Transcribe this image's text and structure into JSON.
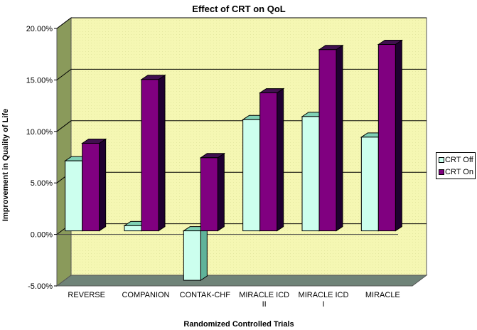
{
  "chart_data": {
    "type": "bar",
    "title": "Effect of CRT on QoL",
    "xlabel": "Randomized Controlled Trials",
    "ylabel": "Improvement in Quality of Life",
    "ylim": [
      -0.05,
      0.2
    ],
    "yticks": [
      -0.05,
      0,
      0.05,
      0.1,
      0.15,
      0.2
    ],
    "ytick_labels": [
      "-5.00%",
      "0.00%",
      "5.00%",
      "10.00%",
      "15.00%",
      "20.00%"
    ],
    "grid": true,
    "style": "3d-clustered-column",
    "categories": [
      "REVERSE",
      "COMPANION",
      "CONTAK-CHF",
      "MIRACLE ICD II",
      "MIRACLE ICD I",
      "MIRACLE"
    ],
    "category_lines": [
      [
        "REVERSE"
      ],
      [
        "COMPANION"
      ],
      [
        "CONTAK-CHF"
      ],
      [
        "MIRACLE ICD",
        "II"
      ],
      [
        "MIRACLE ICD",
        "I"
      ],
      [
        "MIRACLE"
      ]
    ],
    "series": [
      {
        "name": "CRT Off",
        "color": "#ccffee",
        "values": [
          0.068,
          0.005,
          -0.048,
          0.108,
          0.111,
          0.091
        ]
      },
      {
        "name": "CRT On",
        "color": "#800080",
        "values": [
          0.085,
          0.147,
          0.071,
          0.134,
          0.176,
          0.181
        ]
      }
    ],
    "legend": {
      "position": "right",
      "entries": [
        "CRT Off",
        "CRT On"
      ]
    },
    "colors": {
      "wall": "#f5f7b3",
      "side_wall": "#8a9a5b",
      "floor": "#6f8378"
    }
  }
}
